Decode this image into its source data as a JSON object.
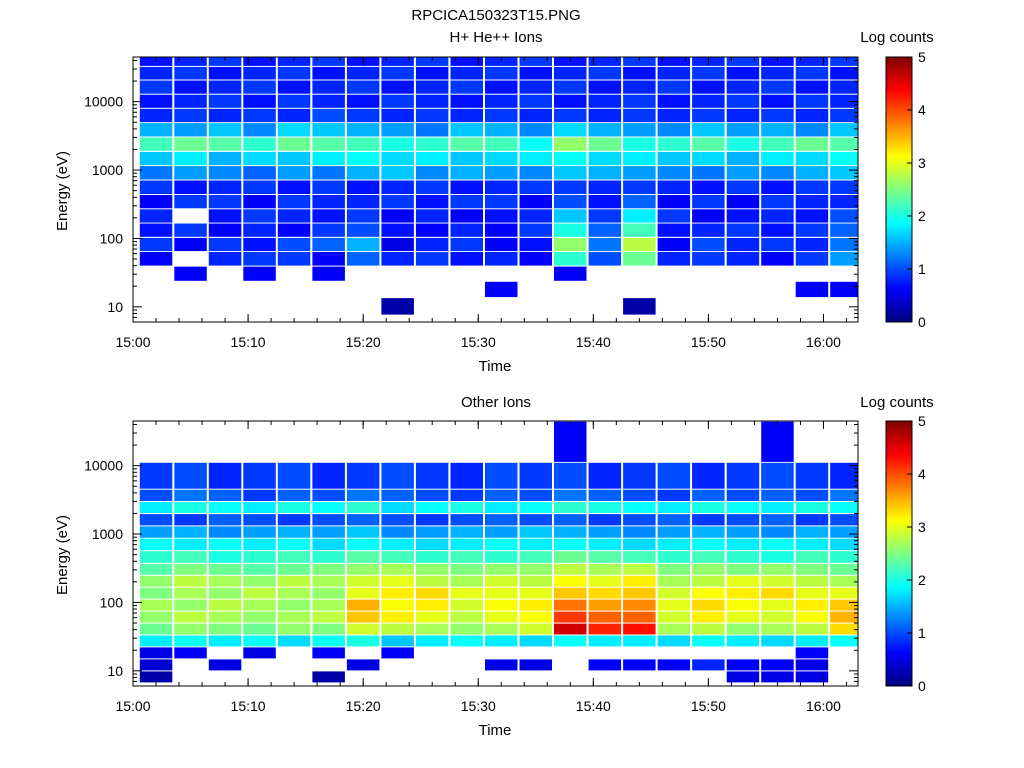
{
  "figure": {
    "title": "RPCICA150323T15.PNG"
  },
  "colors": {
    "colormap": [
      "#00007f",
      "#0000ff",
      "#007fff",
      "#00ffff",
      "#7fff7f",
      "#ffff00",
      "#ff7f00",
      "#ff0000",
      "#7f0000"
    ]
  },
  "chart_data": [
    {
      "type": "heatmap",
      "title": "H+ He++ Ions",
      "xlabel": "Time",
      "ylabel": "Energy (eV)",
      "xticks": [
        "15:00",
        "15:10",
        "15:20",
        "15:30",
        "15:40",
        "15:50",
        "16:00"
      ],
      "xlim": [
        "15:00",
        "16:03"
      ],
      "yticks": [
        10,
        100,
        1000,
        10000
      ],
      "ylim": [
        6,
        45000
      ],
      "yscale": "log",
      "colorbar": {
        "label": "Log counts",
        "ticks": [
          0,
          1,
          2,
          3,
          4,
          5
        ],
        "range": [
          0,
          5
        ]
      },
      "time_bins": [
        "15:02",
        "15:05",
        "15:08",
        "15:11",
        "15:14",
        "15:17",
        "15:20",
        "15:23",
        "15:26",
        "15:29",
        "15:32",
        "15:35",
        "15:38",
        "15:41",
        "15:44",
        "15:47",
        "15:50",
        "15:53",
        "15:56",
        "15:59",
        "16:02"
      ],
      "energy_bins_ev": [
        10,
        18,
        30,
        50,
        80,
        130,
        210,
        340,
        550,
        900,
        1450,
        2350,
        3800,
        6200,
        10000,
        16000,
        26000,
        40000
      ],
      "values": [
        [
          null,
          null,
          null,
          null,
          null,
          null,
          null,
          0.2,
          null,
          null,
          null,
          null,
          null,
          null,
          0.2,
          null,
          null,
          null,
          null,
          null,
          null
        ],
        [
          null,
          null,
          null,
          null,
          null,
          null,
          null,
          null,
          null,
          null,
          0.6,
          null,
          null,
          null,
          null,
          null,
          null,
          null,
          null,
          0.6,
          0.6
        ],
        [
          null,
          0.6,
          null,
          0.6,
          null,
          0.6,
          null,
          null,
          null,
          null,
          null,
          null,
          0.6,
          null,
          null,
          null,
          null,
          null,
          null,
          null,
          null
        ],
        [
          0.6,
          null,
          0.8,
          0.9,
          0.9,
          0.6,
          1.1,
          0.8,
          0.9,
          0.7,
          0.8,
          0.6,
          2.1,
          1.0,
          2.4,
          0.8,
          0.9,
          0.8,
          0.6,
          0.9,
          1.4
        ],
        [
          0.9,
          0.6,
          0.9,
          0.7,
          1.0,
          1.1,
          1.5,
          0.5,
          0.8,
          0.9,
          0.6,
          0.7,
          2.6,
          1.2,
          2.8,
          0.6,
          1.0,
          0.8,
          0.9,
          0.8,
          1.2
        ],
        [
          0.7,
          0.9,
          0.6,
          0.8,
          0.6,
          0.9,
          1.0,
          0.7,
          0.6,
          0.8,
          0.6,
          0.9,
          2.0,
          1.1,
          2.2,
          0.7,
          0.8,
          0.9,
          0.7,
          0.9,
          1.1
        ],
        [
          0.8,
          null,
          0.7,
          0.9,
          0.8,
          0.7,
          0.9,
          0.6,
          0.8,
          0.6,
          0.7,
          0.8,
          1.6,
          0.9,
          1.8,
          0.9,
          0.6,
          0.7,
          0.8,
          0.7,
          1.0
        ],
        [
          0.6,
          0.9,
          0.9,
          0.6,
          0.9,
          0.8,
          0.8,
          0.9,
          0.7,
          0.9,
          0.9,
          0.6,
          1.0,
          0.7,
          1.1,
          0.6,
          0.9,
          0.6,
          0.9,
          0.8,
          0.8
        ],
        [
          0.9,
          0.7,
          0.8,
          0.9,
          0.7,
          0.9,
          0.7,
          0.8,
          0.9,
          0.7,
          0.8,
          0.9,
          0.9,
          0.8,
          0.9,
          0.8,
          0.7,
          0.9,
          0.7,
          0.9,
          0.9
        ],
        [
          1.2,
          1.4,
          1.3,
          1.1,
          1.4,
          1.2,
          1.5,
          1.6,
          1.3,
          1.5,
          1.4,
          1.3,
          1.6,
          1.5,
          1.4,
          1.3,
          1.2,
          1.4,
          1.3,
          1.5,
          1.6
        ],
        [
          1.6,
          1.8,
          1.5,
          1.7,
          1.6,
          1.8,
          1.9,
          1.7,
          1.8,
          1.6,
          1.7,
          1.8,
          1.9,
          1.7,
          1.8,
          1.6,
          1.7,
          1.5,
          1.8,
          1.7,
          1.9
        ],
        [
          2.2,
          2.4,
          2.3,
          2.1,
          2.4,
          2.3,
          2.2,
          2.0,
          2.1,
          2.3,
          2.2,
          1.9,
          2.6,
          2.4,
          2.0,
          2.1,
          2.3,
          2.0,
          2.2,
          2.4,
          2.3
        ],
        [
          1.5,
          1.4,
          1.6,
          1.3,
          1.7,
          1.6,
          1.5,
          1.4,
          1.2,
          1.6,
          1.5,
          1.3,
          1.7,
          1.5,
          1.4,
          1.3,
          1.6,
          1.4,
          1.5,
          1.3,
          1.6
        ],
        [
          0.8,
          0.9,
          0.8,
          0.9,
          0.8,
          1.0,
          0.9,
          0.8,
          0.9,
          0.8,
          0.9,
          0.8,
          0.9,
          0.8,
          0.9,
          0.8,
          0.9,
          0.8,
          0.9,
          0.8,
          0.9
        ],
        [
          0.7,
          0.8,
          0.9,
          0.7,
          0.9,
          0.8,
          0.7,
          0.9,
          0.8,
          0.7,
          0.8,
          0.9,
          0.7,
          0.8,
          0.9,
          0.7,
          0.8,
          0.9,
          0.7,
          0.9,
          0.8
        ],
        [
          0.9,
          0.7,
          0.8,
          0.9,
          0.7,
          0.8,
          0.9,
          0.7,
          0.8,
          0.9,
          0.7,
          0.8,
          0.9,
          0.7,
          0.8,
          0.9,
          0.7,
          0.8,
          0.9,
          0.7,
          0.8
        ],
        [
          0.8,
          0.9,
          0.7,
          0.8,
          0.9,
          0.7,
          0.8,
          0.9,
          0.7,
          0.8,
          0.9,
          0.7,
          0.8,
          0.9,
          0.7,
          0.8,
          0.9,
          0.7,
          0.8,
          0.9,
          0.7
        ],
        [
          0.7,
          0.8,
          0.9,
          0.7,
          0.8,
          0.9,
          0.7,
          0.8,
          0.9,
          0.7,
          0.8,
          0.9,
          0.7,
          0.8,
          0.9,
          0.7,
          0.8,
          0.9,
          0.7,
          0.8,
          0.9
        ]
      ]
    },
    {
      "type": "heatmap",
      "title": "Other Ions",
      "xlabel": "Time",
      "ylabel": "Energy (eV)",
      "xticks": [
        "15:00",
        "15:10",
        "15:20",
        "15:30",
        "15:40",
        "15:50",
        "16:00"
      ],
      "xlim": [
        "15:00",
        "16:03"
      ],
      "yticks": [
        10,
        100,
        1000,
        10000
      ],
      "ylim": [
        6,
        45000
      ],
      "yscale": "log",
      "colorbar": {
        "label": "Log counts",
        "ticks": [
          0,
          1,
          2,
          3,
          4,
          5
        ],
        "range": [
          0,
          5
        ]
      },
      "time_bins": [
        "15:02",
        "15:05",
        "15:08",
        "15:11",
        "15:14",
        "15:17",
        "15:20",
        "15:23",
        "15:26",
        "15:29",
        "15:32",
        "15:35",
        "15:38",
        "15:41",
        "15:44",
        "15:47",
        "15:50",
        "15:53",
        "15:56",
        "15:59",
        "16:02"
      ],
      "energy_bins_ev": [
        8,
        12,
        18,
        27,
        40,
        60,
        90,
        135,
        200,
        300,
        450,
        700,
        1050,
        1600,
        2400,
        3600,
        5500,
        22000
      ],
      "values": [
        [
          0.2,
          null,
          null,
          null,
          null,
          0.2,
          null,
          null,
          null,
          null,
          null,
          null,
          null,
          null,
          null,
          null,
          null,
          0.5,
          0.5,
          0.5,
          null
        ],
        [
          0.4,
          null,
          0.5,
          null,
          null,
          null,
          0.5,
          null,
          null,
          null,
          0.5,
          0.5,
          null,
          0.6,
          0.6,
          0.6,
          0.8,
          0.6,
          0.6,
          0.5,
          null
        ],
        [
          0.5,
          0.6,
          null,
          0.5,
          null,
          0.6,
          null,
          0.6,
          null,
          null,
          null,
          null,
          null,
          null,
          null,
          null,
          null,
          null,
          null,
          0.6,
          null
        ],
        [
          1.8,
          1.9,
          1.8,
          1.9,
          1.7,
          1.9,
          2.0,
          1.6,
          1.8,
          1.9,
          1.8,
          1.7,
          1.9,
          1.8,
          1.8,
          1.7,
          1.9,
          1.8,
          1.7,
          1.8,
          1.9
        ],
        [
          2.4,
          2.6,
          2.5,
          2.4,
          2.6,
          2.5,
          2.9,
          2.8,
          2.7,
          2.6,
          2.7,
          2.9,
          4.6,
          4.2,
          4.3,
          2.7,
          2.8,
          2.6,
          2.7,
          2.8,
          3.3
        ],
        [
          2.6,
          2.8,
          2.7,
          2.6,
          2.7,
          2.8,
          3.4,
          3.2,
          3.0,
          2.8,
          3.0,
          3.1,
          4.1,
          3.9,
          3.9,
          2.9,
          3.2,
          3.0,
          2.9,
          3.1,
          3.5
        ],
        [
          2.7,
          2.6,
          2.8,
          2.7,
          2.6,
          2.7,
          3.5,
          3.1,
          3.2,
          2.9,
          3.1,
          3.2,
          3.8,
          3.6,
          3.7,
          3.0,
          3.3,
          3.1,
          3.0,
          3.2,
          3.4
        ],
        [
          2.5,
          2.7,
          2.6,
          2.8,
          2.7,
          2.6,
          3.0,
          3.2,
          3.3,
          3.0,
          3.0,
          3.0,
          3.4,
          3.3,
          3.4,
          2.9,
          3.1,
          3.2,
          3.3,
          3.0,
          3.0
        ],
        [
          2.6,
          2.8,
          2.7,
          2.6,
          2.8,
          2.7,
          2.9,
          3.0,
          2.8,
          2.7,
          2.9,
          2.8,
          3.1,
          3.0,
          3.2,
          2.7,
          2.8,
          3.0,
          2.9,
          2.8,
          2.7
        ],
        [
          2.3,
          2.5,
          2.4,
          2.3,
          2.4,
          2.5,
          2.6,
          2.7,
          2.6,
          2.5,
          2.6,
          2.6,
          2.8,
          2.7,
          2.8,
          2.5,
          2.6,
          2.5,
          2.6,
          2.5,
          2.4
        ],
        [
          2.1,
          2.2,
          2.0,
          2.1,
          2.2,
          2.1,
          2.3,
          2.2,
          2.1,
          2.2,
          2.1,
          2.2,
          2.4,
          2.3,
          2.2,
          2.1,
          2.2,
          2.1,
          2.0,
          2.2,
          2.1
        ],
        [
          1.9,
          1.8,
          1.9,
          1.8,
          1.9,
          1.7,
          1.9,
          1.8,
          1.7,
          1.8,
          1.9,
          1.8,
          1.9,
          1.8,
          1.7,
          1.8,
          1.9,
          1.8,
          1.9,
          1.8,
          1.7
        ],
        [
          1.4,
          1.5,
          1.3,
          1.4,
          1.5,
          1.4,
          1.6,
          1.3,
          1.4,
          1.5,
          1.4,
          1.6,
          1.5,
          1.4,
          1.3,
          1.4,
          1.5,
          1.4,
          1.3,
          1.5,
          1.4
        ],
        [
          1.0,
          0.9,
          1.1,
          1.0,
          0.9,
          1.0,
          1.1,
          1.0,
          0.9,
          1.0,
          1.1,
          1.0,
          1.1,
          0.9,
          1.0,
          1.1,
          0.9,
          1.0,
          1.1,
          0.9,
          1.0
        ],
        [
          1.8,
          2.0,
          1.9,
          1.8,
          2.0,
          1.9,
          2.1,
          1.7,
          1.9,
          2.0,
          1.8,
          1.9,
          2.1,
          2.0,
          1.9,
          1.8,
          2.0,
          1.9,
          1.8,
          2.0,
          1.9
        ],
        [
          1.0,
          1.2,
          1.1,
          0.9,
          1.1,
          1.0,
          1.2,
          1.1,
          1.0,
          0.9,
          1.1,
          1.0,
          1.2,
          1.1,
          1.0,
          0.9,
          1.1,
          1.0,
          1.1,
          1.0,
          1.2
        ],
        [
          0.9,
          1.0,
          0.8,
          0.9,
          1.0,
          0.8,
          0.9,
          1.0,
          0.9,
          0.8,
          1.0,
          0.9,
          1.0,
          0.8,
          0.9,
          1.0,
          0.8,
          0.9,
          1.0,
          0.9,
          0.8
        ],
        [
          null,
          null,
          null,
          null,
          null,
          null,
          null,
          null,
          null,
          null,
          null,
          null,
          0.6,
          null,
          null,
          null,
          null,
          null,
          0.6,
          null,
          null
        ]
      ]
    }
  ]
}
